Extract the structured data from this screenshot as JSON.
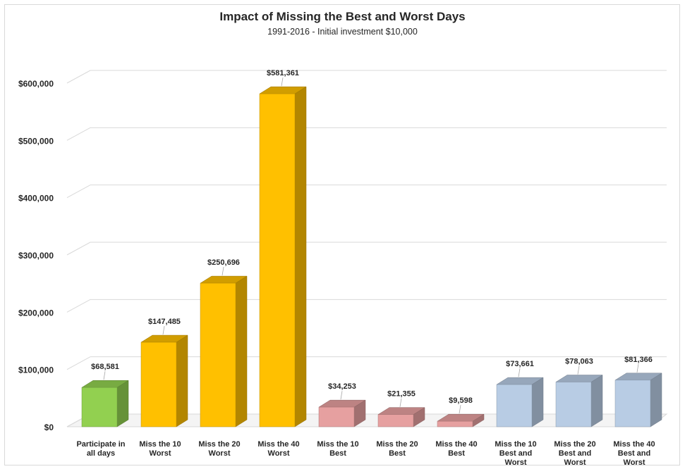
{
  "chart_data": {
    "type": "bar",
    "title": "Impact of Missing the Best and Worst Days",
    "subtitle": "1991-2016 - Initial investment $10,000",
    "categories": [
      [
        "Participate in",
        "all days"
      ],
      [
        "Miss the 10",
        "Worst"
      ],
      [
        "Miss the 20",
        "Worst"
      ],
      [
        "Miss the 40",
        "Worst"
      ],
      [
        "Miss the 10",
        "Best"
      ],
      [
        "Miss the 20",
        "Best"
      ],
      [
        "Miss the 40",
        "Best"
      ],
      [
        "Miss the 10",
        "Best and",
        "Worst"
      ],
      [
        "Miss the 20",
        "Best and",
        "Worst"
      ],
      [
        "Miss the 40",
        "Best and",
        "Worst"
      ]
    ],
    "values": [
      68581,
      147485,
      250696,
      581361,
      34253,
      21355,
      9598,
      73661,
      78063,
      81366
    ],
    "value_labels": [
      "$68,581",
      "$147,485",
      "$250,696",
      "$581,361",
      "$34,253",
      "$21,355",
      "$9,598",
      "$73,661",
      "$78,063",
      "$81,366"
    ],
    "bar_colors": [
      "#92d050",
      "#ffc000",
      "#ffc000",
      "#ffc000",
      "#e6a0a0",
      "#e6a0a0",
      "#e6a0a0",
      "#b8cce4",
      "#b8cce4",
      "#b8cce4"
    ],
    "yticks": [
      0,
      100000,
      200000,
      300000,
      400000,
      500000,
      600000
    ],
    "ytick_labels": [
      "$0",
      "$100,000",
      "$200,000",
      "$300,000",
      "$400,000",
      "$500,000",
      "$600,000"
    ],
    "ylim": [
      0,
      600000
    ],
    "grid": true,
    "style": "3d-column"
  }
}
